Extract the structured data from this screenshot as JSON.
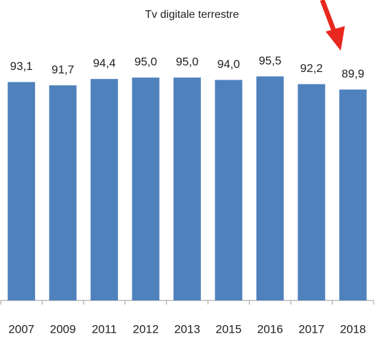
{
  "chart_data": {
    "type": "bar",
    "title": "Tv digitale terrestre",
    "categories": [
      "2007",
      "2009",
      "2011",
      "2012",
      "2013",
      "2015",
      "2016",
      "2017",
      "2018"
    ],
    "values": [
      93.1,
      91.7,
      94.4,
      95.0,
      95.0,
      94.0,
      95.5,
      92.2,
      89.9
    ],
    "value_labels": [
      "93,1",
      "91,7",
      "94,4",
      "95,0",
      "95,0",
      "94,0",
      "95,5",
      "92,2",
      "89,9"
    ],
    "color": "#4f81bd",
    "ylim": [
      0,
      100
    ]
  }
}
